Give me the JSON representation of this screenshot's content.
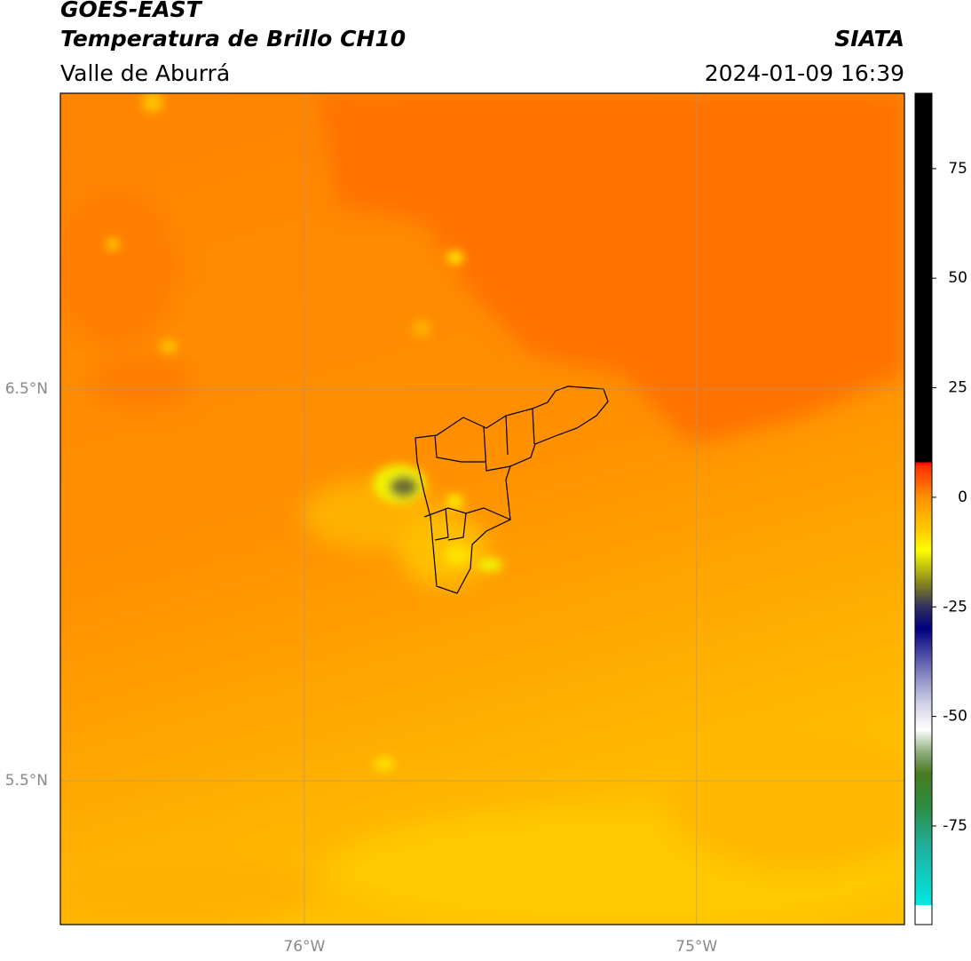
{
  "header": {
    "title": "GOES-EAST",
    "subtitle": "Temperatura de Brillo CH10",
    "region": "Valle de Aburrá",
    "source": "SIATA",
    "datetime": "2024-01-09 16:39"
  },
  "map": {
    "xlim": [
      -76.622,
      -74.47
    ],
    "ylim": [
      5.133,
      7.255
    ],
    "xticks": [
      {
        "value": -76,
        "label": "76°W"
      },
      {
        "value": -75,
        "label": "75°W"
      }
    ],
    "yticks": [
      {
        "value": 6.5,
        "label": "6.5°N"
      },
      {
        "value": 5.5,
        "label": "5.5°N"
      }
    ],
    "grid": true
  },
  "colorbar": {
    "lim": [
      -97.5,
      92.2
    ],
    "ticks": [
      75,
      50,
      25,
      0,
      -25,
      -50,
      -75
    ],
    "stops": [
      {
        "value": -97.5,
        "color": "#ffffff"
      },
      {
        "value": -93,
        "color": "#ffffff"
      },
      {
        "value": -93,
        "color": "#00e8e0"
      },
      {
        "value": -80,
        "color": "#20b0a0"
      },
      {
        "value": -70,
        "color": "#2e8b3e"
      },
      {
        "value": -63,
        "color": "#4a7a20"
      },
      {
        "value": -58,
        "color": "#90b080"
      },
      {
        "value": -53,
        "color": "#ffffff"
      },
      {
        "value": -47,
        "color": "#d0d0e8"
      },
      {
        "value": -40,
        "color": "#8080c0"
      },
      {
        "value": -30,
        "color": "#000080"
      },
      {
        "value": -25,
        "color": "#303060"
      },
      {
        "value": -20,
        "color": "#808020"
      },
      {
        "value": -12,
        "color": "#ffff00"
      },
      {
        "value": -8,
        "color": "#ffd000"
      },
      {
        "value": 0,
        "color": "#ff9000"
      },
      {
        "value": 7,
        "color": "#ff3000"
      },
      {
        "value": 8,
        "color": "#ff0000"
      },
      {
        "value": 8,
        "color": "#000000"
      },
      {
        "value": 92.2,
        "color": "#000000"
      }
    ]
  }
}
